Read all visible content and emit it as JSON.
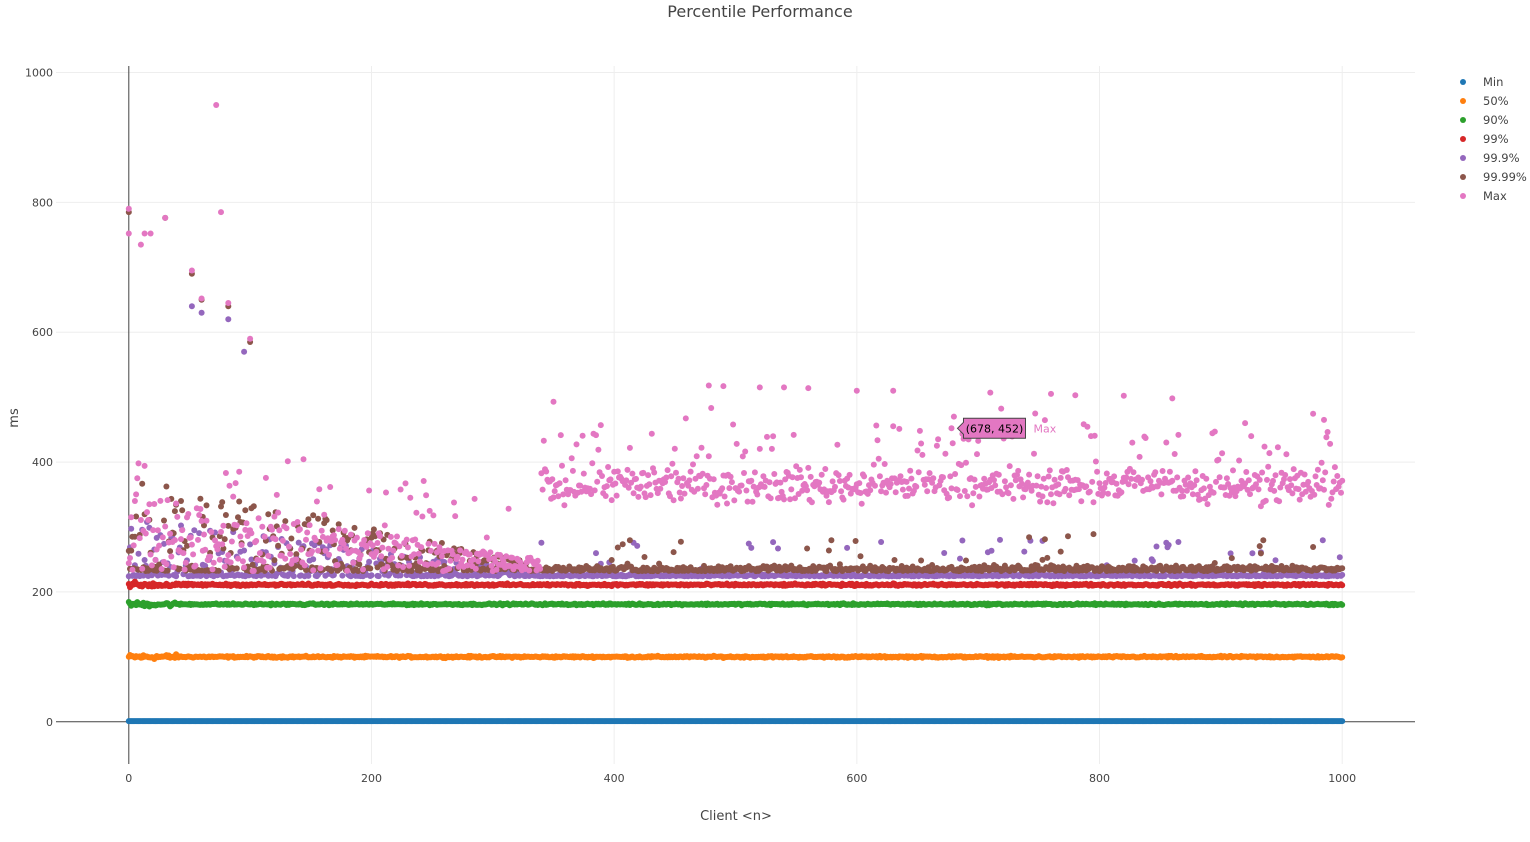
{
  "chart_data": {
    "type": "scatter",
    "title": "Percentile Performance",
    "xlabel": "Client <n>",
    "ylabel": "ms",
    "xlim": [
      -60,
      1060
    ],
    "ylim": [
      -65,
      1010
    ],
    "x_ticks": [
      0,
      200,
      400,
      600,
      800,
      1000
    ],
    "y_ticks": [
      0,
      200,
      400,
      600,
      800,
      1000
    ],
    "grid": true,
    "legend_position": "top-right",
    "point_count": 1001,
    "series": [
      {
        "name": "Min",
        "color": "#1f77b4",
        "base": 1,
        "noise": 0,
        "profile": "flat"
      },
      {
        "name": "50%",
        "color": "#ff7f0e",
        "base": 100,
        "noise": 2,
        "profile": "flat"
      },
      {
        "name": "90%",
        "color": "#2ca02c",
        "base": 181,
        "noise": 2,
        "profile": "flat"
      },
      {
        "name": "99%",
        "color": "#d62728",
        "base": 211,
        "noise": 2.5,
        "profile": "flat"
      },
      {
        "name": "99.9%",
        "color": "#9467bd",
        "base": 224,
        "noise": 5,
        "profile": "tail"
      },
      {
        "name": "99.99%",
        "color": "#8c564b",
        "base": 232,
        "noise": 12,
        "profile": "tail"
      },
      {
        "name": "Max",
        "color": "#e377c2",
        "base": 365,
        "noise": 40,
        "profile": "max"
      }
    ],
    "highlights": [
      {
        "series": "Max",
        "points": [
          [
            0,
            752
          ],
          [
            0,
            790
          ],
          [
            10,
            735
          ],
          [
            13,
            752
          ],
          [
            18,
            752
          ],
          [
            30,
            776
          ],
          [
            52,
            695
          ],
          [
            60,
            652
          ],
          [
            72,
            950
          ],
          [
            76,
            785
          ],
          [
            82,
            645
          ],
          [
            100,
            590
          ],
          [
            350,
            493
          ],
          [
            478,
            518
          ],
          [
            490,
            517
          ],
          [
            520,
            515
          ],
          [
            540,
            515
          ],
          [
            560,
            514
          ],
          [
            600,
            510
          ],
          [
            630,
            510
          ],
          [
            710,
            507
          ],
          [
            760,
            505
          ],
          [
            780,
            503
          ],
          [
            820,
            502
          ],
          [
            860,
            498
          ],
          [
            920,
            460
          ],
          [
            985,
            465
          ]
        ]
      },
      {
        "series": "99.99%",
        "points": [
          [
            0,
            785
          ],
          [
            30,
            776
          ],
          [
            52,
            690
          ],
          [
            60,
            650
          ],
          [
            82,
            640
          ],
          [
            100,
            585
          ]
        ]
      },
      {
        "series": "99.9%",
        "points": [
          [
            52,
            640
          ],
          [
            60,
            630
          ],
          [
            82,
            620
          ],
          [
            95,
            570
          ]
        ]
      }
    ],
    "hover": {
      "x": 678,
      "y": 452,
      "label": "(678, 452)",
      "series": "Max"
    }
  }
}
